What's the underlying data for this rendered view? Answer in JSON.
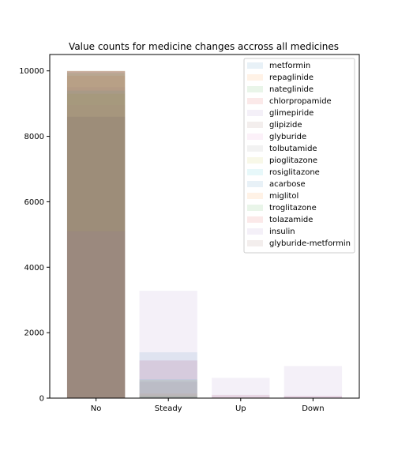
{
  "chart_data": {
    "type": "bar",
    "title": "Value counts for medicine changes accross all medicines",
    "xlabel": "",
    "ylabel": "",
    "categories": [
      "No",
      "Steady",
      "Up",
      "Down"
    ],
    "ylim": [
      0,
      10500
    ],
    "yticks": [
      0,
      2000,
      4000,
      6000,
      8000,
      10000
    ],
    "grid": false,
    "legend_position": "top-right",
    "alpha": 0.1,
    "series": [
      {
        "name": "metformin",
        "color": "#1f77b4",
        "values": [
          8600,
          1400,
          0,
          0
        ]
      },
      {
        "name": "repaglinide",
        "color": "#ff7f0e",
        "values": [
          9850,
          140,
          10,
          0
        ]
      },
      {
        "name": "nateglinide",
        "color": "#2ca02c",
        "values": [
          9930,
          70,
          0,
          0
        ]
      },
      {
        "name": "chlorpropamide",
        "color": "#d62728",
        "values": [
          9990,
          10,
          0,
          0
        ]
      },
      {
        "name": "glimepiride",
        "color": "#9467bd",
        "values": [
          9500,
          500,
          30,
          20
        ]
      },
      {
        "name": "glipizide",
        "color": "#8c564b",
        "values": [
          8600,
          1150,
          100,
          70
        ]
      },
      {
        "name": "glyburide",
        "color": "#e377c2",
        "values": [
          8950,
          1150,
          90,
          70
        ]
      },
      {
        "name": "tolbutamide",
        "color": "#7f7f7f",
        "values": [
          9998,
          2,
          0,
          0
        ]
      },
      {
        "name": "pioglitazone",
        "color": "#bcbd22",
        "values": [
          9300,
          550,
          20,
          10
        ]
      },
      {
        "name": "rosiglitazone",
        "color": "#17becf",
        "values": [
          9400,
          580,
          10,
          10
        ]
      },
      {
        "name": "acarbose",
        "color": "#1f77b4",
        "values": [
          9980,
          20,
          0,
          0
        ]
      },
      {
        "name": "miglitol",
        "color": "#ff7f0e",
        "values": [
          9998,
          2,
          0,
          0
        ]
      },
      {
        "name": "troglitazone",
        "color": "#2ca02c",
        "values": [
          9999,
          1,
          0,
          0
        ]
      },
      {
        "name": "tolazamide",
        "color": "#d62728",
        "values": [
          9996,
          4,
          0,
          0
        ]
      },
      {
        "name": "insulin",
        "color": "#9467bd",
        "values": [
          5100,
          3280,
          620,
          980
        ]
      },
      {
        "name": "glyburide-metformin",
        "color": "#8c564b",
        "values": [
          9990,
          10,
          0,
          0
        ]
      }
    ]
  }
}
